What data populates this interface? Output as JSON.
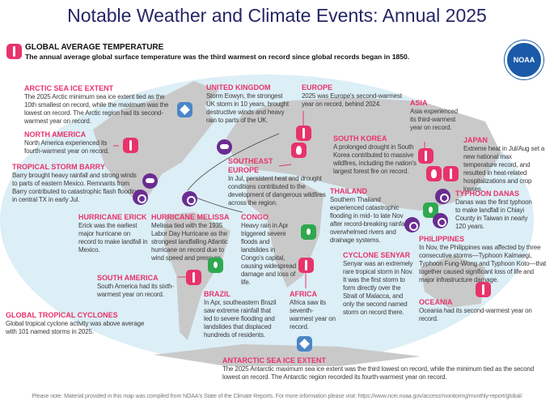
{
  "title": "Notable Weather and Climate Events: Annual 2025",
  "global": {
    "heading": "GLOBAL AVERAGE TEMPERATURE",
    "text": "The annual average global surface temperature was the third warmest on record since global records began in 1850."
  },
  "logo": "NOAA",
  "events": {
    "arctic": {
      "h": "ARCTIC SEA ICE EXTENT",
      "t": "The 2025 Arctic minimum sea ice extent tied as the 10th smallest on record, while the maximum was the lowest on record. The Arctic region had its second-warmest year on record."
    },
    "na": {
      "h": "NORTH AMERICA",
      "t": "North America experienced its fourth-warmest year on record."
    },
    "barry": {
      "h": "TROPICAL STORM BARRY",
      "t": "Barry brought heavy rainfall and strong winds to parts of eastern Mexico. Remnants from Barry contributed to catastrophic flash flooding in central TX in early Jul."
    },
    "erick": {
      "h": "HURRICANE ERICK",
      "t": "Erick was the earliest major hurricane on record to make landfall in Mexico."
    },
    "melissa": {
      "h": "HURRICANE MELISSA",
      "t": "Melissa tied with the 1935 Labor Day Hurricane as the strongest landfalling Atlantic hurricane on record due to wind speed and pressure."
    },
    "congo": {
      "h": "CONGO",
      "t": "Heavy rain in Apr triggered severe floods and landslides in Congo's capital, causing widespread damage and loss of life."
    },
    "sa": {
      "h": "SOUTH AMERICA",
      "t": "South America had its sixth-warmest year on record."
    },
    "gtc": {
      "h": "GLOBAL TROPICAL CYCLONES",
      "t": "Global tropical cyclone activity was above average with 101 named storms in 2025."
    },
    "brazil": {
      "h": "BRAZIL",
      "t": "In Apr, southeastern Brazil saw extreme rainfall that led to severe flooding and landslides that displaced hundreds of residents."
    },
    "africa": {
      "h": "AFRICA",
      "t": "Africa saw its seventh-warmest year on record."
    },
    "uk": {
      "h": "UNITED KINGDOM",
      "t": "Storm Eowyn, the strongest UK storm in 10 years, brought destructive winds and heavy rain to parts of the UK."
    },
    "europe": {
      "h": "EUROPE",
      "t": "2025 was Europe's second-warmest year on record, behind 2024."
    },
    "asia": {
      "h": "ASIA",
      "t": "Asia experienced its third-warmest year on record."
    },
    "sk": {
      "h": "SOUTH KOREA",
      "t": "A prolonged drought in South Korea contributed to massive wildfires, including the nation's largest forest fire on record."
    },
    "see": {
      "h": "SOUTHEAST EUROPE",
      "t": "In Jul, persistent heat and drought conditions contributed to the development of dangerous wildfires across the region."
    },
    "thailand": {
      "h": "THAILAND",
      "t": "Southern Thailand experienced catastrophic flooding in mid- to late Nov after record-breaking rainfall overwhelmed rivers and drainage systems."
    },
    "japan": {
      "h": "JAPAN",
      "t": "Extreme heat in Jul/Aug set a new national max temperature record, and resulted in heat-related hospitalizations and crop losses."
    },
    "danas": {
      "h": "TYPHOON DANAS",
      "t": "Danas was the first typhoon to make landfall in Chiayi County in Taiwan in nearly 120 years."
    },
    "phil": {
      "h": "PHILIPPINES",
      "t": "In Nov, the Philippines was affected by three consecutive storms—Typhoon Kalmaegi, Typhoon Fung-Wong and Typhoon Koto—that together caused significant loss of life and major infrastructure damage."
    },
    "senyar": {
      "h": "CYCLONE SENYAR",
      "t": "Senyar was an extremely rare tropical storm in Nov. It was the first storm to form directly over the Strait of Malacca, and only the second named storm on record there."
    },
    "oceania": {
      "h": "OCEANIA",
      "t": "Oceania had its second-warmest year on record."
    },
    "antarctic": {
      "h": "ANTARCTIC SEA ICE EXTENT",
      "t": "The 2025 Antarctic maximum sea ice extent was the third lowest on record, while the minimum tied as the second lowest on record. The Antarctic region recorded its fourth-warmest year on record."
    }
  },
  "footnote": "Please note: Material provided in this map was compiled from NOAA's State of the Climate Reports. For more information please visit: https://www.ncei.noaa.gov/access/monitoring/monthly-report/global/",
  "colors": {
    "title": "#232665",
    "heading": "#e8336a",
    "temperature": "#e8336a",
    "storm": "#6a2c91",
    "rain": "#2fa84f",
    "ice": "#4a86c8",
    "ocean": "#dceef6",
    "land": "#c9c9c9"
  }
}
